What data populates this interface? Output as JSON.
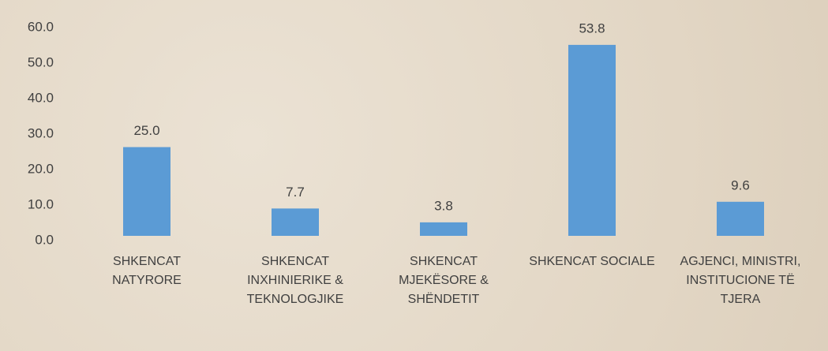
{
  "chart_data": {
    "type": "bar",
    "categories": [
      "SHKENCAT NATYRORE",
      "SHKENCAT INXHINIERIKE & TEKNOLOGJIKE",
      "SHKENCAT MJEKËSORE & SHËNDETIT",
      "SHKENCAT SOCIALE",
      "AGJENCI, MINISTRI, INSTITUCIONE TË TJERA"
    ],
    "values": [
      25.0,
      7.7,
      3.8,
      53.8,
      9.6
    ],
    "value_labels": [
      "25.0",
      "7.7",
      "3.8",
      "53.8",
      "9.6"
    ],
    "color": "#5b9bd5",
    "ylim": [
      0,
      60
    ],
    "yticks": [
      {
        "value": 0,
        "label": "0.0"
      },
      {
        "value": 10,
        "label": "10.0"
      },
      {
        "value": 20,
        "label": "20.0"
      },
      {
        "value": 30,
        "label": "30.0"
      },
      {
        "value": 40,
        "label": "40.0"
      },
      {
        "value": 50,
        "label": "50.0"
      },
      {
        "value": 60,
        "label": "60.0"
      }
    ],
    "grid": false
  }
}
